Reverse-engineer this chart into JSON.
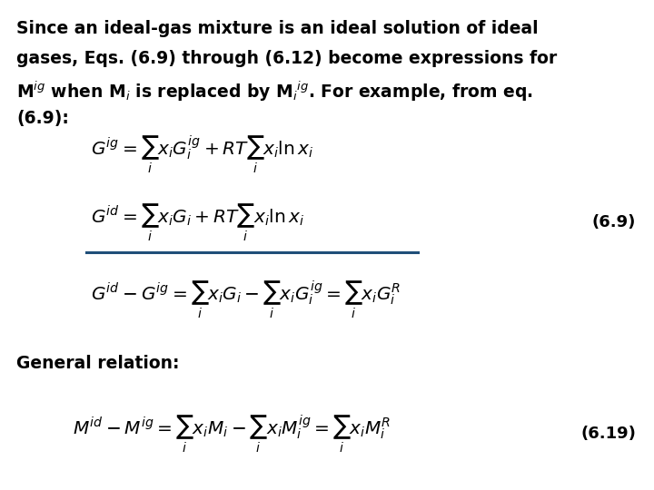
{
  "bg_color": "#ffffff",
  "text_color": "#000000",
  "line_color": "#1F4E79",
  "para_line1": "Since an ideal-gas mixture is an ideal solution of ideal",
  "para_line2": "gases, Eqs. (6.9) through (6.12) become expressions for",
  "para_line3": "M$^{ig}$ when M$_i$ is replaced by M$_i$$^{ig}$. For example, from eq.",
  "para_line4": "(6.9):",
  "eq1": "$G^{ig} = \\sum_i x_i G_i^{ig} + RT\\sum_i x_i \\ln x_i$",
  "eq2": "$G^{id} = \\sum_i x_i G_i + RT\\sum_i x_i \\ln x_i$",
  "label_69": "(6.9)",
  "eq3": "$G^{id} - G^{ig} = \\sum_i x_i G_i - \\sum_i x_i G_i^{ig} = \\sum_i x_i G_i^{R}$",
  "general": "General relation:",
  "eq4": "$M^{id} - M^{ig} = \\sum_i x_i M_i - \\sum_i x_i M_i^{ig} = \\sum_i x_i M_i^{R}$",
  "label_619": "(6.19)",
  "para_fontsize": 13.5,
  "eq_fontsize": 14.5,
  "general_fontsize": 13.5,
  "label_fontsize": 13.0,
  "fig_width": 7.2,
  "fig_height": 5.4,
  "dpi": 100
}
